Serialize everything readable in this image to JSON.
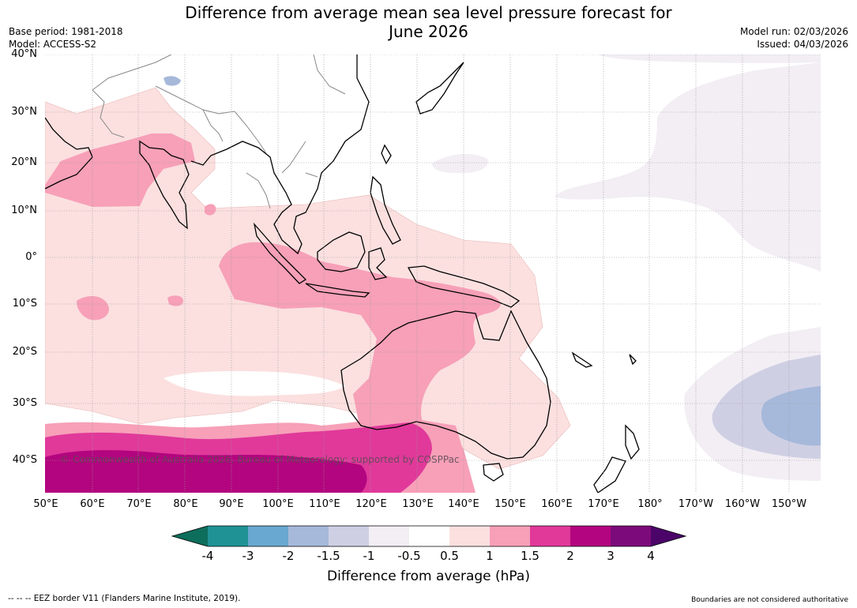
{
  "header": {
    "title_line1": "Difference from average mean sea level pressure forecast for",
    "title_line2": "June 2026",
    "base_period": "Base period: 1981-2018",
    "model": "Model: ACCESS-S2",
    "model_run": "Model run: 02/03/2026",
    "issued": "Issued: 04/03/2026"
  },
  "map": {
    "latitude_labels": [
      "40°N",
      "30°N",
      "20°N",
      "10°N",
      "0°",
      "10°S",
      "20°S",
      "30°S",
      "40°S"
    ],
    "longitude_labels": [
      "50°E",
      "60°E",
      "70°E",
      "80°E",
      "90°E",
      "100°E",
      "110°E",
      "120°E",
      "130°E",
      "140°E",
      "150°E",
      "160°E",
      "170°E",
      "180°",
      "170°W",
      "160°W",
      "150°W"
    ],
    "copyright": "© Commonwealth of Australia 2026, Bureau of Meteorology; supported by COSPPac"
  },
  "colorbar": {
    "ticks": [
      "-4",
      "-3",
      "-2",
      "-1.5",
      "-1",
      "-0.5",
      "0.5",
      "1",
      "1.5",
      "2",
      "3",
      "4"
    ],
    "colors": [
      "#0e6e5c",
      "#1f9296",
      "#69a8d0",
      "#a6b9da",
      "#cfcfe4",
      "#f2eef4",
      "#ffffff",
      "#fbe0df",
      "#f7a0b8",
      "#e0399a",
      "#b3057f",
      "#7c0a7a",
      "#4b0569"
    ],
    "label": "Difference from average (hPa)"
  },
  "footer": {
    "eez_note": "--  --  -- EEZ border V11 (Flanders Marine Institute, 2019).",
    "disclaimer": "Boundaries are not considered authoritative"
  }
}
